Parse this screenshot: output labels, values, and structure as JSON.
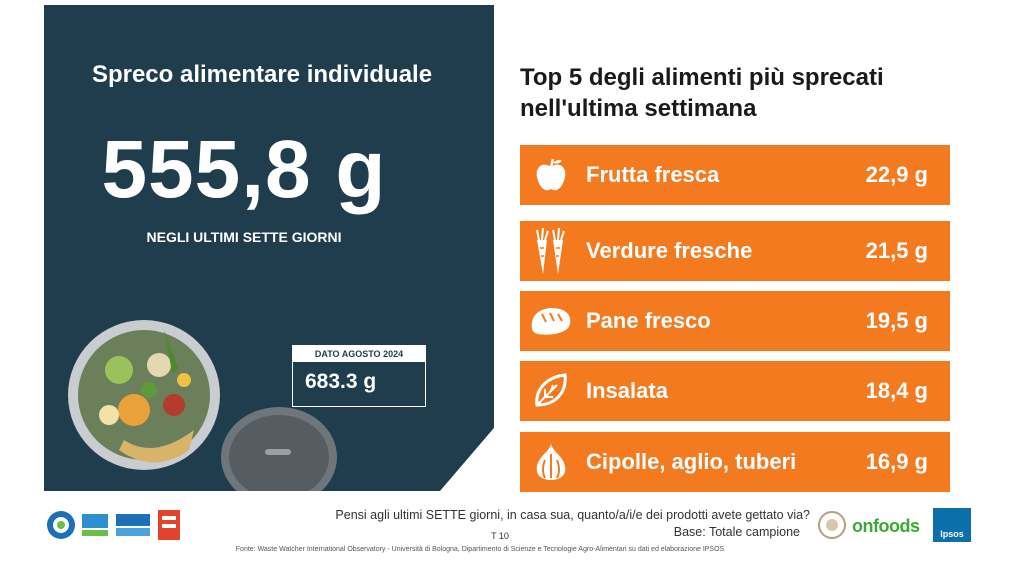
{
  "left_panel": {
    "title": "Spreco alimentare individuale",
    "big_value": "555,8 g",
    "big_subtitle": "NEGLI ULTIMI SETTE GIORNI",
    "compare_label": "DATO AGOSTO 2024",
    "compare_value": "683.3 g"
  },
  "right_panel": {
    "title_line1": "Top 5 degli alimenti più sprecati",
    "title_line2": "nell'ultima settimana",
    "items": [
      {
        "name": "Frutta fresca",
        "value": "22,9 g",
        "icon": "apple-icon"
      },
      {
        "name": "Verdure fresche",
        "value": "21,5 g",
        "icon": "carrot-icon"
      },
      {
        "name": "Pane fresco",
        "value": "19,5 g",
        "icon": "bread-icon"
      },
      {
        "name": "Insalata",
        "value": "18,4 g",
        "icon": "leaf-icon"
      },
      {
        "name": "Cipolle, aglio, tuberi",
        "value": "16,9 g",
        "icon": "garlic-icon"
      }
    ],
    "accent_color": "#f47a20"
  },
  "footer": {
    "question": "Pensi agli ultimi SETTE giorni, in casa sua, quanto/a/i/e dei prodotti avete gettato via?",
    "base": "Base: Totale campione",
    "page": "T 10",
    "source": "Fonte: Waste Watcher International Observatory - Università di Bologna, Dipartimento di Scienze e Tecnologie Agro-Alimentari su dati ed elaborazione IPSOS",
    "brand_onfoods": "onfoods",
    "brand_ipsos": "Ipsos"
  },
  "colors": {
    "panel_bg": "#1f3d4d",
    "accent": "#f47a20"
  }
}
